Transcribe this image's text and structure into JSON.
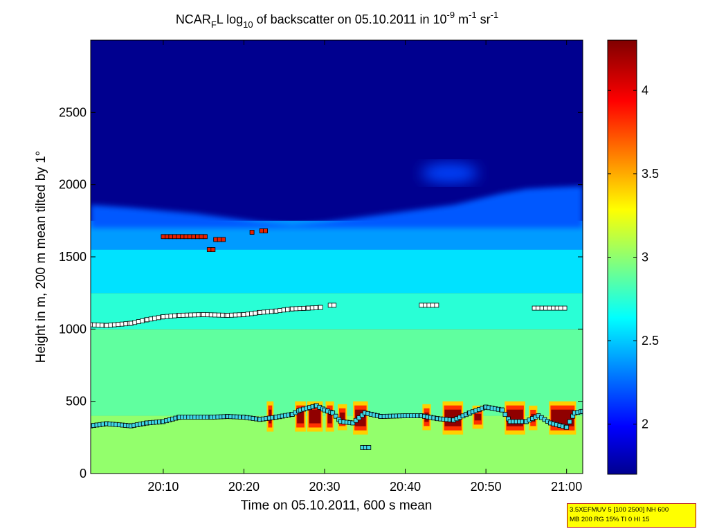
{
  "chart_data": {
    "type": "heatmap",
    "title": {
      "instrument": "NCAR",
      "instrument_sub": "F",
      "instrument_tail": "L log",
      "log_base": "10",
      "middle": " of backscatter on 05.10.2011 in 10",
      "exp1": "-9",
      "unit1": " m",
      "exp2": "-1",
      "unit2": " sr",
      "exp3": "-1"
    },
    "xlabel": "Time on 05.10.2011, 600 s mean",
    "ylabel": "Height in m, 200 m mean tilted by 1°",
    "x_ticks": [
      {
        "label": "20:10",
        "value": 10
      },
      {
        "label": "20:20",
        "value": 20
      },
      {
        "label": "20:30",
        "value": 30
      },
      {
        "label": "20:40",
        "value": 40
      },
      {
        "label": "20:50",
        "value": 50
      },
      {
        "label": "21:00",
        "value": 60
      }
    ],
    "xlim": [
      1,
      62
    ],
    "ylim": [
      0,
      3000
    ],
    "y_ticks": [
      0,
      500,
      1000,
      1500,
      2000,
      2500
    ],
    "colorbar": {
      "range": [
        1.7,
        4.3
      ],
      "ticks": [
        2,
        2.5,
        3,
        3.5,
        4
      ],
      "colormap": "jet"
    },
    "background_levels": [
      {
        "y0": 0,
        "y1": 400,
        "value": 3.05
      },
      {
        "y0": 400,
        "y1": 1000,
        "value": 2.92
      },
      {
        "y0": 1000,
        "y1": 1250,
        "value": 2.78
      },
      {
        "y0": 1250,
        "y1": 1550,
        "value": 2.6
      },
      {
        "y0": 1550,
        "y1": 1750,
        "value": 2.42
      }
    ],
    "aerosol_top": [
      {
        "x": 1,
        "y": 1860
      },
      {
        "x": 6,
        "y": 1840
      },
      {
        "x": 10,
        "y": 1820
      },
      {
        "x": 14,
        "y": 1800
      },
      {
        "x": 18,
        "y": 1770
      },
      {
        "x": 22,
        "y": 1740
      },
      {
        "x": 26,
        "y": 1720
      },
      {
        "x": 30,
        "y": 1740
      },
      {
        "x": 34,
        "y": 1770
      },
      {
        "x": 38,
        "y": 1800
      },
      {
        "x": 42,
        "y": 1830
      },
      {
        "x": 46,
        "y": 1860
      },
      {
        "x": 49,
        "y": 1900
      },
      {
        "x": 52,
        "y": 1940
      },
      {
        "x": 55,
        "y": 1970
      },
      {
        "x": 58,
        "y": 1980
      },
      {
        "x": 62,
        "y": 1990
      }
    ],
    "plume": {
      "x0": 42,
      "x1": 49,
      "y": 2080,
      "value": 2.2
    },
    "intense_cells": [
      {
        "x0": 23.0,
        "x1": 23.5,
        "y0": 290,
        "y1": 500
      },
      {
        "x0": 26.5,
        "x1": 27.5,
        "y0": 290,
        "y1": 500
      },
      {
        "x0": 28.0,
        "x1": 29.6,
        "y0": 290,
        "y1": 500
      },
      {
        "x0": 30.3,
        "x1": 31.0,
        "y0": 290,
        "y1": 500
      },
      {
        "x0": 31.8,
        "x1": 32.6,
        "y0": 300,
        "y1": 480
      },
      {
        "x0": 33.7,
        "x1": 35.2,
        "y0": 270,
        "y1": 500
      },
      {
        "x0": 42.3,
        "x1": 43.0,
        "y0": 300,
        "y1": 480
      },
      {
        "x0": 44.8,
        "x1": 47.0,
        "y0": 270,
        "y1": 500
      },
      {
        "x0": 48.5,
        "x1": 49.5,
        "y0": 310,
        "y1": 470
      },
      {
        "x0": 52.5,
        "x1": 54.7,
        "y0": 270,
        "y1": 500
      },
      {
        "x0": 55.5,
        "x1": 56.2,
        "y0": 300,
        "y1": 470
      },
      {
        "x0": 58.0,
        "x1": 61.0,
        "y0": 270,
        "y1": 500
      }
    ],
    "layer_white": [
      {
        "x": 1.0,
        "y": 1030
      },
      {
        "x": 3.0,
        "y": 1025
      },
      {
        "x": 6.0,
        "y": 1040
      },
      {
        "x": 8.0,
        "y": 1065
      },
      {
        "x": 10.0,
        "y": 1085
      },
      {
        "x": 12.0,
        "y": 1095
      },
      {
        "x": 15.0,
        "y": 1100
      },
      {
        "x": 18.0,
        "y": 1095
      },
      {
        "x": 20.0,
        "y": 1100
      },
      {
        "x": 22.0,
        "y": 1115
      },
      {
        "x": 24.0,
        "y": 1125
      },
      {
        "x": 26.0,
        "y": 1140
      },
      {
        "x": 28.0,
        "y": 1145
      },
      {
        "x": 29.5,
        "y": 1150
      }
    ],
    "layer_white_extra": [
      {
        "x0": 30.7,
        "x1": 31.5,
        "y": 1165
      },
      {
        "x0": 42.0,
        "x1": 44.3,
        "y": 1165
      },
      {
        "x0": 56.0,
        "x1": 60.2,
        "y": 1145
      }
    ],
    "layer_red": [
      {
        "x0": 10.0,
        "x1": 15.3,
        "y": 1640
      },
      {
        "x0": 15.7,
        "x1": 16.3,
        "y": 1550
      },
      {
        "x0": 16.5,
        "x1": 17.5,
        "y": 1620
      },
      {
        "x0": 21.0,
        "x1": 21.3,
        "y": 1670
      },
      {
        "x0": 22.2,
        "x1": 22.8,
        "y": 1680
      }
    ],
    "layer_cyan": [
      {
        "x": 1.0,
        "y": 330
      },
      {
        "x": 3.0,
        "y": 345
      },
      {
        "x": 6.0,
        "y": 330
      },
      {
        "x": 8.0,
        "y": 350
      },
      {
        "x": 10.0,
        "y": 360
      },
      {
        "x": 12.0,
        "y": 390
      },
      {
        "x": 16.0,
        "y": 390
      },
      {
        "x": 18.0,
        "y": 395
      },
      {
        "x": 20.0,
        "y": 390
      },
      {
        "x": 22.0,
        "y": 375
      },
      {
        "x": 24.0,
        "y": 390
      },
      {
        "x": 26.0,
        "y": 410
      },
      {
        "x": 27.0,
        "y": 440
      },
      {
        "x": 29.0,
        "y": 470
      },
      {
        "x": 30.0,
        "y": 440
      },
      {
        "x": 31.0,
        "y": 420
      },
      {
        "x": 32.0,
        "y": 360
      },
      {
        "x": 33.5,
        "y": 350
      },
      {
        "x": 35.0,
        "y": 420
      },
      {
        "x": 37.0,
        "y": 395
      },
      {
        "x": 40.0,
        "y": 400
      },
      {
        "x": 42.0,
        "y": 400
      },
      {
        "x": 44.0,
        "y": 380
      },
      {
        "x": 46.0,
        "y": 370
      },
      {
        "x": 48.0,
        "y": 420
      },
      {
        "x": 50.0,
        "y": 460
      },
      {
        "x": 52.0,
        "y": 440
      },
      {
        "x": 53.0,
        "y": 360
      },
      {
        "x": 55.0,
        "y": 360
      },
      {
        "x": 56.5,
        "y": 400
      },
      {
        "x": 58.0,
        "y": 350
      },
      {
        "x": 60.0,
        "y": 320
      },
      {
        "x": 61.0,
        "y": 420
      },
      {
        "x": 62.0,
        "y": 430
      }
    ],
    "layer_cyan_low": [
      {
        "x0": 34.7,
        "x1": 35.8,
        "y": 180
      }
    ]
  },
  "settings_box": {
    "line1": "3.5XEFMUV 5 [100 2500] NH 600",
    "line2": "MB 200 RG 15% TI 0 HI 15"
  },
  "colors": {
    "marker_edge": "#000000",
    "white_fill": "#ffffff",
    "red_fill": "#e82000",
    "cyan_fill": "#40d8e8"
  }
}
